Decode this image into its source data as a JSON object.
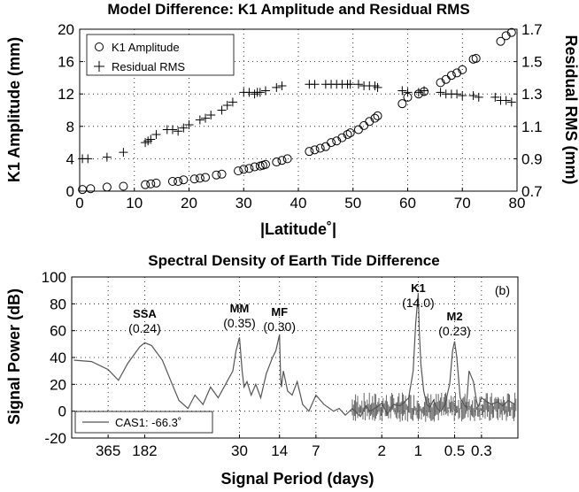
{
  "chart_data": [
    {
      "type": "scatter",
      "title": "Model Difference:  K1 Amplitude and Residual RMS",
      "xlabel": "|Latitude˚|",
      "ylabel": "K1 Amplitude (mm)",
      "ylabel_right": "Residual RMS (mm)",
      "xlim": [
        0,
        80
      ],
      "ylim": [
        0,
        20
      ],
      "ylim_right": [
        0.7,
        1.7
      ],
      "xticks": [
        0,
        10,
        20,
        30,
        40,
        50,
        60,
        70,
        80
      ],
      "yticks": [
        0,
        4,
        8,
        12,
        16,
        20
      ],
      "yticks_right": [
        0.7,
        0.9,
        1.1,
        1.3,
        1.5,
        1.7
      ],
      "grid": true,
      "legend_position": "top-left",
      "series": [
        {
          "name": "K1 Amplitude",
          "marker": "circle",
          "axis": "left",
          "x": [
            0.5,
            2,
            5,
            8,
            12,
            13,
            14,
            17,
            18,
            19,
            21,
            22,
            23,
            25,
            26,
            29,
            30,
            31,
            32,
            33,
            33.5,
            34,
            36,
            37,
            38,
            42,
            43,
            44,
            45,
            46,
            47,
            48,
            49,
            49.5,
            51,
            52,
            53,
            54,
            54.5,
            59,
            60,
            62,
            63,
            66,
            67,
            68,
            69,
            70,
            72,
            72.5,
            77,
            78,
            79
          ],
          "y": [
            0.2,
            0.3,
            0.5,
            0.6,
            0.8,
            0.9,
            1.0,
            1.2,
            1.2,
            1.4,
            1.5,
            1.6,
            1.7,
            2.0,
            2.1,
            2.5,
            2.7,
            2.8,
            3.0,
            3.1,
            3.2,
            3.3,
            3.6,
            3.8,
            4.0,
            4.9,
            5.1,
            5.3,
            5.5,
            6.0,
            6.2,
            6.6,
            7.0,
            7.2,
            7.6,
            8.1,
            8.6,
            9.0,
            9.3,
            10.8,
            11.6,
            12.0,
            12.3,
            13.4,
            13.8,
            14.3,
            14.6,
            15.0,
            16.3,
            16.4,
            18.5,
            19.2,
            19.6
          ]
        },
        {
          "name": "Residual RMS",
          "marker": "plus",
          "axis": "right",
          "x": [
            0.5,
            1.5,
            5,
            8,
            12,
            12.5,
            13,
            14,
            16,
            17,
            18,
            19,
            20,
            22,
            23,
            24,
            26,
            27,
            28,
            30,
            31,
            32,
            32.5,
            33,
            34,
            36,
            37,
            42,
            43,
            45,
            46,
            47,
            48,
            49,
            49.5,
            51,
            52,
            53,
            54,
            54.5,
            59,
            60,
            62,
            63,
            66,
            67,
            68,
            69,
            70,
            72,
            73,
            76,
            77,
            78,
            79
          ],
          "y": [
            0.9,
            0.9,
            0.91,
            0.94,
            1.0,
            1.01,
            1.02,
            1.05,
            1.08,
            1.08,
            1.07,
            1.09,
            1.11,
            1.14,
            1.15,
            1.17,
            1.2,
            1.23,
            1.25,
            1.31,
            1.31,
            1.3,
            1.31,
            1.31,
            1.32,
            1.34,
            1.35,
            1.36,
            1.36,
            1.36,
            1.36,
            1.36,
            1.36,
            1.36,
            1.36,
            1.36,
            1.35,
            1.35,
            1.35,
            1.34,
            1.32,
            1.31,
            1.31,
            1.32,
            1.31,
            1.3,
            1.3,
            1.3,
            1.29,
            1.29,
            1.28,
            1.28,
            1.26,
            1.26,
            1.25
          ]
        }
      ]
    },
    {
      "type": "line",
      "title": "Spectral Density of Earth Tide Difference",
      "xlabel": "Signal Period (days)",
      "ylabel": "Signal Power (dB)",
      "xscale": "log (frequency)",
      "xticks": [
        "365",
        "182",
        "30",
        "14",
        "7",
        "2",
        "1",
        "0.5",
        "0.3"
      ],
      "xtick_periods": [
        365,
        182,
        30,
        14,
        7,
        2,
        1,
        0.5,
        0.3
      ],
      "ylim": [
        -20,
        100
      ],
      "yticks": [
        -20,
        0,
        20,
        40,
        60,
        80,
        100
      ],
      "grid": true,
      "panel_label": "(b)",
      "legend_position": "bottom-left",
      "series": [
        {
          "name": "CAS1: -66.3˚",
          "period": [
            700,
            500,
            365,
            300,
            250,
            200,
            182,
            160,
            130,
            110,
            95,
            80,
            70,
            60,
            52,
            45,
            38,
            34,
            32,
            30,
            28.5,
            27.5,
            26,
            24,
            22,
            20,
            18,
            16,
            15,
            14,
            13.7,
            13.5,
            13,
            12,
            11,
            10,
            9,
            8,
            7,
            6,
            5,
            4.5,
            4,
            3.5,
            3,
            2.7,
            2.5,
            2.2,
            2,
            1.8,
            1.6,
            1.4,
            1.2,
            1.1,
            1.05,
            1.0,
            0.98,
            0.95,
            0.9,
            0.85,
            0.8,
            0.75,
            0.7,
            0.65,
            0.6,
            0.55,
            0.52,
            0.5,
            0.48,
            0.45,
            0.42,
            0.4,
            0.38,
            0.35,
            0.33,
            0.32,
            0.3,
            0.28,
            0.25,
            0.22,
            0.2,
            0.18,
            0.16
          ],
          "power": [
            38,
            37,
            31,
            23,
            36,
            48,
            51,
            49,
            38,
            22,
            8,
            2,
            12,
            5,
            18,
            10,
            22,
            30,
            45,
            55,
            30,
            18,
            22,
            12,
            20,
            10,
            28,
            40,
            45,
            57,
            25,
            18,
            30,
            15,
            12,
            22,
            5,
            0,
            12,
            5,
            0,
            2,
            -3,
            2,
            -4,
            4,
            0,
            3,
            6,
            -2,
            5,
            4,
            10,
            30,
            65,
            88,
            60,
            35,
            15,
            5,
            3,
            8,
            2,
            0,
            5,
            20,
            45,
            52,
            40,
            10,
            5,
            3,
            30,
            22,
            8,
            3,
            10,
            8,
            5,
            7,
            4,
            8,
            5
          ]
        }
      ],
      "annotations": [
        {
          "label": "SSA",
          "value": "(0.24)",
          "period": 182
        },
        {
          "label": "MM",
          "value": "(0.35)",
          "period": 30
        },
        {
          "label": "MF",
          "value": "(0.30)",
          "period": 14
        },
        {
          "label": "K1",
          "value": "(14.0)",
          "period": 1
        },
        {
          "label": "M2",
          "value": "(0.23)",
          "period": 0.5
        }
      ]
    }
  ]
}
